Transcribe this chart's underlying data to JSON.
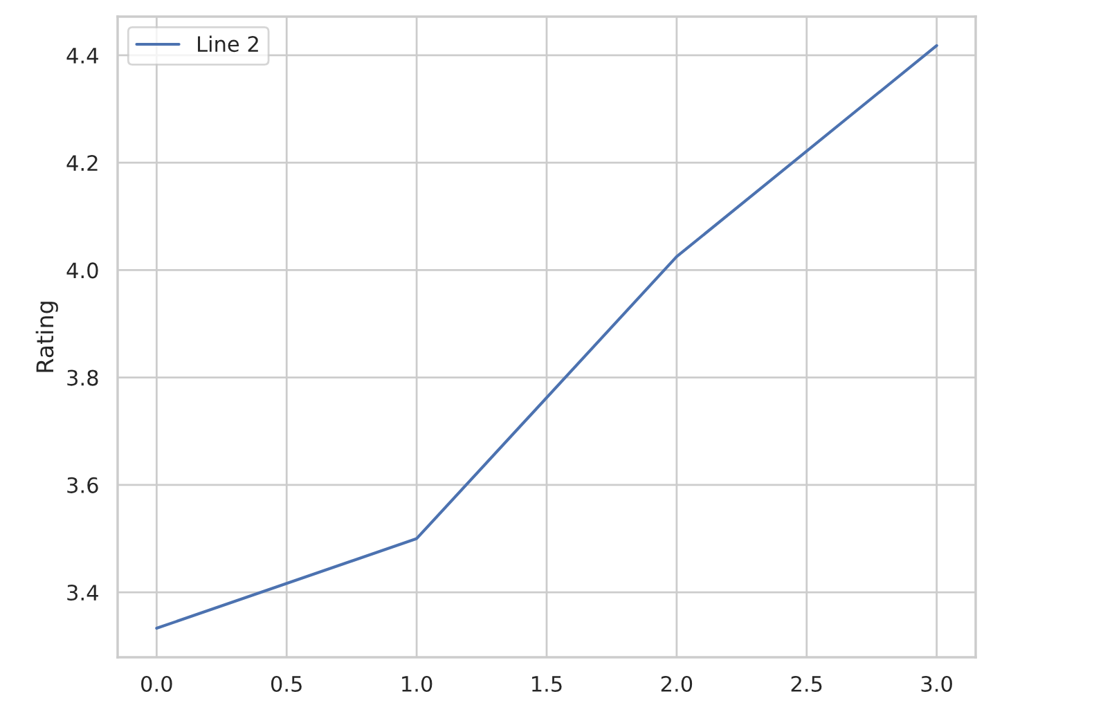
{
  "chart_data": {
    "type": "line",
    "ylabel": "Rating",
    "x": [
      0,
      1,
      2,
      3
    ],
    "series": [
      {
        "name": "Line 2",
        "color": "#4c72b0",
        "values": [
          3.333,
          3.5,
          4.025,
          4.418
        ]
      }
    ],
    "xlim": [
      -0.15,
      3.15
    ],
    "xticks": [
      {
        "value": 0,
        "label": "0.0"
      },
      {
        "value": 0.5,
        "label": "0.5"
      },
      {
        "value": 1,
        "label": "1.0"
      },
      {
        "value": 1.5,
        "label": "1.5"
      },
      {
        "value": 2,
        "label": "2.0"
      },
      {
        "value": 2.5,
        "label": "2.5"
      },
      {
        "value": 3,
        "label": "3.0"
      }
    ],
    "ylim": [
      3.279,
      4.472
    ],
    "yticks": [
      {
        "value": 3.4,
        "label": "3.4"
      },
      {
        "value": 3.6,
        "label": "3.6"
      },
      {
        "value": 3.8,
        "label": "3.8"
      },
      {
        "value": 4.0,
        "label": "4.0"
      },
      {
        "value": 4.2,
        "label": "4.2"
      },
      {
        "value": 4.4,
        "label": "4.4"
      }
    ],
    "grid": true,
    "legend": "top left",
    "marker": "none",
    "line_style": "solid"
  }
}
